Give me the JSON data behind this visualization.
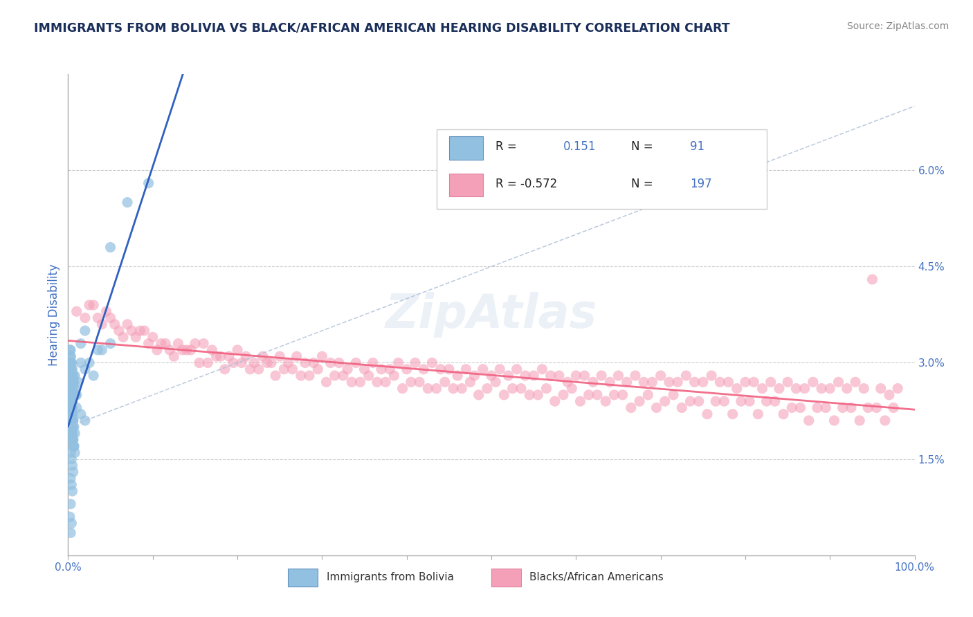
{
  "title": "IMMIGRANTS FROM BOLIVIA VS BLACK/AFRICAN AMERICAN HEARING DISABILITY CORRELATION CHART",
  "source": "Source: ZipAtlas.com",
  "ylabel": "Hearing Disability",
  "xlim": [
    0,
    100
  ],
  "ylim": [
    0,
    7.5
  ],
  "ytick_vals": [
    1.5,
    3.0,
    4.5,
    6.0
  ],
  "ytick_labels": [
    "1.5%",
    "3.0%",
    "4.5%",
    "6.0%"
  ],
  "xtick_vals": [
    0,
    10,
    20,
    30,
    40,
    50,
    60,
    70,
    80,
    90,
    100
  ],
  "xtick_labels_show": [
    "0.0%",
    "",
    "",
    "",
    "",
    "",
    "",
    "",
    "",
    "",
    "100.0%"
  ],
  "color_blue": "#92C0E0",
  "color_pink": "#F4A0B8",
  "color_blue_line": "#3060C0",
  "color_pink_line": "#F06080",
  "color_gray_dash": "#B0C0D8",
  "background": "#FFFFFF",
  "title_color": "#1A2E5A",
  "axis_color": "#4472C4",
  "tick_color": "#555555",
  "watermark": "ZipAtlas",
  "legend_r1": "R =",
  "legend_v1": "0.151",
  "legend_n1_label": "N =",
  "legend_n1": "91",
  "legend_r2": "R = -0.572",
  "legend_n2": "N = 197",
  "blue_x": [
    0.3,
    0.4,
    0.5,
    0.6,
    0.7,
    0.8,
    0.9,
    1.0,
    1.2,
    1.5,
    2.0,
    2.5,
    3.0,
    4.0,
    5.0,
    0.2,
    0.3,
    0.4,
    0.5,
    0.6,
    0.3,
    0.4,
    0.5,
    0.6,
    0.7,
    0.3,
    0.4,
    0.5,
    0.6,
    0.2,
    0.3,
    0.4,
    0.5,
    0.6,
    0.7,
    0.8,
    0.3,
    0.4,
    0.5,
    0.6,
    0.3,
    0.4,
    0.5,
    0.2,
    0.3,
    0.4,
    0.5,
    0.2,
    0.3,
    0.4,
    0.2,
    0.3,
    0.4,
    0.5,
    0.6,
    0.3,
    0.4,
    0.2,
    0.3,
    0.4,
    0.5,
    0.6,
    0.7,
    0.3,
    0.4,
    0.5,
    1.0,
    1.5,
    2.0,
    1.5,
    2.0,
    3.5,
    5.0,
    7.0,
    9.5,
    0.3,
    0.4,
    0.5,
    0.6,
    0.7,
    0.8,
    0.3,
    0.4,
    0.5,
    0.6,
    0.3,
    0.4,
    0.2,
    0.3
  ],
  "blue_y": [
    3.2,
    2.9,
    2.8,
    2.7,
    2.6,
    2.8,
    2.5,
    2.5,
    2.7,
    3.0,
    2.9,
    3.0,
    2.8,
    3.2,
    3.3,
    2.5,
    2.4,
    2.3,
    2.2,
    2.1,
    2.1,
    2.0,
    1.9,
    1.8,
    1.7,
    1.6,
    1.5,
    1.4,
    1.3,
    2.2,
    2.1,
    2.0,
    1.9,
    1.8,
    1.7,
    1.6,
    2.3,
    2.2,
    2.1,
    2.0,
    2.5,
    2.4,
    2.3,
    2.7,
    2.6,
    2.5,
    2.4,
    2.8,
    2.7,
    2.6,
    3.0,
    2.9,
    2.8,
    2.7,
    2.6,
    3.1,
    3.0,
    3.2,
    3.1,
    3.0,
    2.9,
    2.8,
    2.7,
    1.2,
    1.1,
    1.0,
    2.3,
    2.2,
    2.1,
    3.3,
    3.5,
    3.2,
    4.8,
    5.5,
    5.8,
    2.4,
    2.3,
    2.2,
    2.1,
    2.0,
    1.9,
    2.0,
    1.9,
    1.8,
    1.7,
    0.8,
    0.5,
    0.6,
    0.35
  ],
  "pink_x": [
    1.0,
    2.0,
    3.0,
    4.0,
    5.0,
    6.0,
    7.0,
    8.0,
    9.0,
    10.0,
    11.0,
    12.0,
    13.0,
    14.0,
    15.0,
    16.0,
    17.0,
    18.0,
    19.0,
    20.0,
    21.0,
    22.0,
    23.0,
    24.0,
    25.0,
    26.0,
    27.0,
    28.0,
    29.0,
    30.0,
    31.0,
    32.0,
    33.0,
    34.0,
    35.0,
    36.0,
    37.0,
    38.0,
    39.0,
    40.0,
    41.0,
    42.0,
    43.0,
    44.0,
    45.0,
    46.0,
    47.0,
    48.0,
    49.0,
    50.0,
    51.0,
    52.0,
    53.0,
    54.0,
    55.0,
    56.0,
    57.0,
    58.0,
    59.0,
    60.0,
    61.0,
    62.0,
    63.0,
    64.0,
    65.0,
    66.0,
    67.0,
    68.0,
    69.0,
    70.0,
    71.0,
    72.0,
    73.0,
    74.0,
    75.0,
    76.0,
    77.0,
    78.0,
    79.0,
    80.0,
    81.0,
    82.0,
    83.0,
    84.0,
    85.0,
    86.0,
    87.0,
    88.0,
    89.0,
    90.0,
    91.0,
    92.0,
    93.0,
    94.0,
    95.0,
    96.0,
    97.0,
    98.0,
    5.5,
    8.5,
    11.5,
    14.5,
    17.5,
    20.5,
    23.5,
    26.5,
    29.5,
    32.5,
    35.5,
    38.5,
    41.5,
    44.5,
    47.5,
    50.5,
    53.5,
    56.5,
    59.5,
    62.5,
    65.5,
    68.5,
    71.5,
    74.5,
    77.5,
    80.5,
    83.5,
    86.5,
    89.5,
    92.5,
    95.5,
    3.5,
    6.5,
    9.5,
    12.5,
    15.5,
    18.5,
    21.5,
    24.5,
    27.5,
    30.5,
    33.5,
    36.5,
    39.5,
    42.5,
    45.5,
    48.5,
    51.5,
    54.5,
    57.5,
    60.5,
    63.5,
    66.5,
    69.5,
    72.5,
    75.5,
    78.5,
    81.5,
    84.5,
    87.5,
    90.5,
    93.5,
    96.5,
    2.5,
    7.5,
    13.5,
    19.5,
    25.5,
    31.5,
    37.5,
    43.5,
    49.5,
    55.5,
    61.5,
    67.5,
    73.5,
    79.5,
    85.5,
    91.5,
    97.5,
    4.5,
    10.5,
    16.5,
    22.5,
    28.5,
    34.5,
    40.5,
    46.5,
    52.5,
    58.5,
    64.5,
    70.5,
    76.5,
    82.5,
    88.5,
    94.5
  ],
  "pink_y": [
    3.8,
    3.7,
    3.9,
    3.6,
    3.7,
    3.5,
    3.6,
    3.4,
    3.5,
    3.4,
    3.3,
    3.2,
    3.3,
    3.2,
    3.3,
    3.3,
    3.2,
    3.1,
    3.1,
    3.2,
    3.1,
    3.0,
    3.1,
    3.0,
    3.1,
    3.0,
    3.1,
    3.0,
    3.0,
    3.1,
    3.0,
    3.0,
    2.9,
    3.0,
    2.9,
    3.0,
    2.9,
    2.9,
    3.0,
    2.9,
    3.0,
    2.9,
    3.0,
    2.9,
    2.9,
    2.8,
    2.9,
    2.8,
    2.9,
    2.8,
    2.9,
    2.8,
    2.9,
    2.8,
    2.8,
    2.9,
    2.8,
    2.8,
    2.7,
    2.8,
    2.8,
    2.7,
    2.8,
    2.7,
    2.8,
    2.7,
    2.8,
    2.7,
    2.7,
    2.8,
    2.7,
    2.7,
    2.8,
    2.7,
    2.7,
    2.8,
    2.7,
    2.7,
    2.6,
    2.7,
    2.7,
    2.6,
    2.7,
    2.6,
    2.7,
    2.6,
    2.6,
    2.7,
    2.6,
    2.6,
    2.7,
    2.6,
    2.7,
    2.6,
    4.3,
    2.6,
    2.5,
    2.6,
    3.6,
    3.5,
    3.3,
    3.2,
    3.1,
    3.0,
    3.0,
    2.9,
    2.9,
    2.8,
    2.8,
    2.8,
    2.7,
    2.7,
    2.7,
    2.7,
    2.6,
    2.6,
    2.6,
    2.5,
    2.5,
    2.5,
    2.5,
    2.4,
    2.4,
    2.4,
    2.4,
    2.3,
    2.3,
    2.3,
    2.3,
    3.7,
    3.4,
    3.3,
    3.1,
    3.0,
    2.9,
    2.9,
    2.8,
    2.8,
    2.7,
    2.7,
    2.7,
    2.6,
    2.6,
    2.6,
    2.5,
    2.5,
    2.5,
    2.4,
    2.4,
    2.4,
    2.3,
    2.3,
    2.3,
    2.2,
    2.2,
    2.2,
    2.2,
    2.1,
    2.1,
    2.1,
    2.1,
    3.9,
    3.5,
    3.2,
    3.0,
    2.9,
    2.8,
    2.7,
    2.6,
    2.6,
    2.5,
    2.5,
    2.4,
    2.4,
    2.4,
    2.3,
    2.3,
    2.3,
    3.8,
    3.2,
    3.0,
    2.9,
    2.8,
    2.7,
    2.7,
    2.6,
    2.6,
    2.5,
    2.5,
    2.4,
    2.4,
    2.4,
    2.3,
    2.3
  ]
}
